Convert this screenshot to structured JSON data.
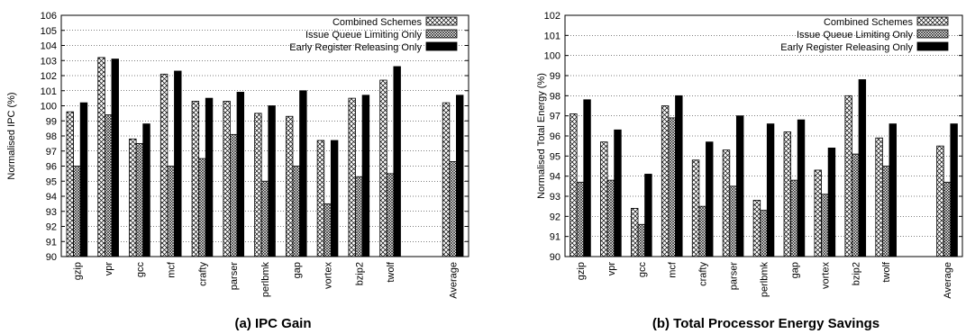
{
  "chart_data": [
    {
      "type": "bar",
      "caption": "(a) IPC Gain",
      "xlabel": "",
      "ylabel": "Normalised IPC (%)",
      "ylim": [
        90,
        106
      ],
      "yticks": [
        90,
        91,
        92,
        93,
        94,
        95,
        96,
        97,
        98,
        99,
        100,
        101,
        102,
        103,
        104,
        105,
        106
      ],
      "grid": true,
      "legend_position": "top-right",
      "categories": [
        "gzip",
        "vpr",
        "gcc",
        "mcf",
        "crafty",
        "parser",
        "perlbmk",
        "gap",
        "vortex",
        "bzip2",
        "twolf",
        "Average"
      ],
      "series": [
        {
          "name": "Combined Schemes",
          "pattern": "crosshatch",
          "values": [
            99.6,
            103.2,
            97.8,
            102.1,
            100.3,
            100.3,
            99.5,
            99.3,
            97.7,
            100.5,
            101.7,
            100.2
          ]
        },
        {
          "name": "Issue Queue Limiting Only",
          "pattern": "dense-crosshatch",
          "values": [
            96.0,
            99.4,
            97.5,
            96.0,
            96.5,
            98.1,
            95.0,
            96.0,
            93.5,
            95.3,
            95.5,
            96.3
          ]
        },
        {
          "name": "Early Register Releasing Only",
          "pattern": "solid-black",
          "values": [
            100.2,
            103.1,
            98.8,
            102.3,
            100.5,
            100.9,
            100.0,
            101.0,
            97.7,
            100.7,
            102.6,
            100.7
          ]
        }
      ]
    },
    {
      "type": "bar",
      "caption": "(b) Total Processor Energy Savings",
      "xlabel": "",
      "ylabel": "Normalised Total Energy (%)",
      "ylim": [
        90,
        102
      ],
      "yticks": [
        90,
        91,
        92,
        93,
        94,
        95,
        96,
        97,
        98,
        99,
        100,
        101,
        102
      ],
      "grid": true,
      "legend_position": "top-right",
      "categories": [
        "gzip",
        "vpr",
        "gcc",
        "mcf",
        "crafty",
        "parser",
        "perlbmk",
        "gap",
        "vortex",
        "bzip2",
        "twolf",
        "Average"
      ],
      "series": [
        {
          "name": "Combined Schemes",
          "pattern": "crosshatch",
          "values": [
            97.1,
            95.7,
            92.4,
            97.5,
            94.8,
            95.3,
            92.8,
            96.2,
            94.3,
            98.0,
            95.9,
            95.5
          ]
        },
        {
          "name": "Issue Queue Limiting Only",
          "pattern": "dense-crosshatch",
          "values": [
            93.7,
            93.8,
            91.6,
            96.9,
            92.5,
            93.5,
            92.3,
            93.8,
            93.1,
            95.1,
            94.5,
            93.7
          ]
        },
        {
          "name": "Early Register Releasing Only",
          "pattern": "solid-black",
          "values": [
            97.8,
            96.3,
            94.1,
            98.0,
            95.7,
            97.0,
            96.6,
            96.8,
            95.4,
            98.8,
            96.6,
            96.6
          ]
        }
      ]
    }
  ]
}
